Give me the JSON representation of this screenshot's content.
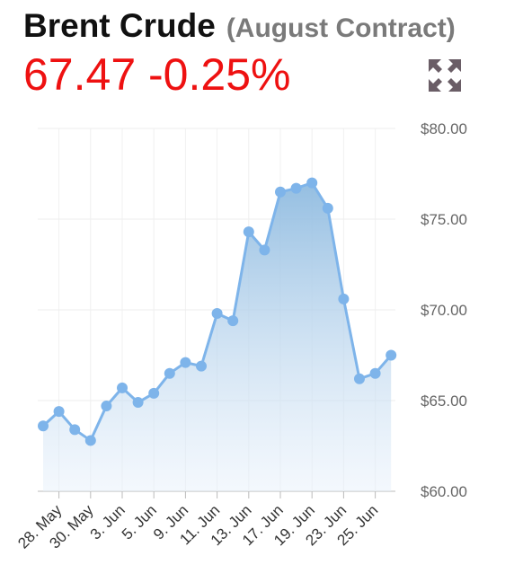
{
  "header": {
    "title": "Brent Crude",
    "subtitle": "(August Contract)",
    "price": "67.47",
    "change": "-0.25%",
    "icon": "expand-arrows-icon",
    "icon_color": "#6a5d66",
    "price_color": "#ee1111"
  },
  "chart_data": {
    "type": "area",
    "title": "Brent Crude",
    "xlabel": "",
    "ylabel": "",
    "ylim": [
      60,
      80
    ],
    "yticks": [
      "$60.00",
      "$65.00",
      "$70.00",
      "$75.00",
      "$80.00"
    ],
    "x_ticks": [
      "28. May",
      "30. May",
      "3. Jun",
      "5. Jun",
      "9. Jun",
      "11. Jun",
      "13. Jun",
      "17. Jun",
      "19. Jun",
      "23. Jun",
      "25. Jun"
    ],
    "series": [
      {
        "values": [
          63.6,
          64.4,
          63.4,
          62.8,
          64.7,
          65.7,
          64.9,
          65.4,
          66.5,
          67.1,
          66.9,
          69.8,
          69.4,
          74.3,
          73.3,
          76.5,
          76.7,
          77.0,
          75.6,
          70.6,
          66.2,
          66.5,
          67.5
        ]
      }
    ],
    "grid": true,
    "legend": "none",
    "line_color": "#7eb4ea",
    "fill_color": "#9cc5e6"
  }
}
